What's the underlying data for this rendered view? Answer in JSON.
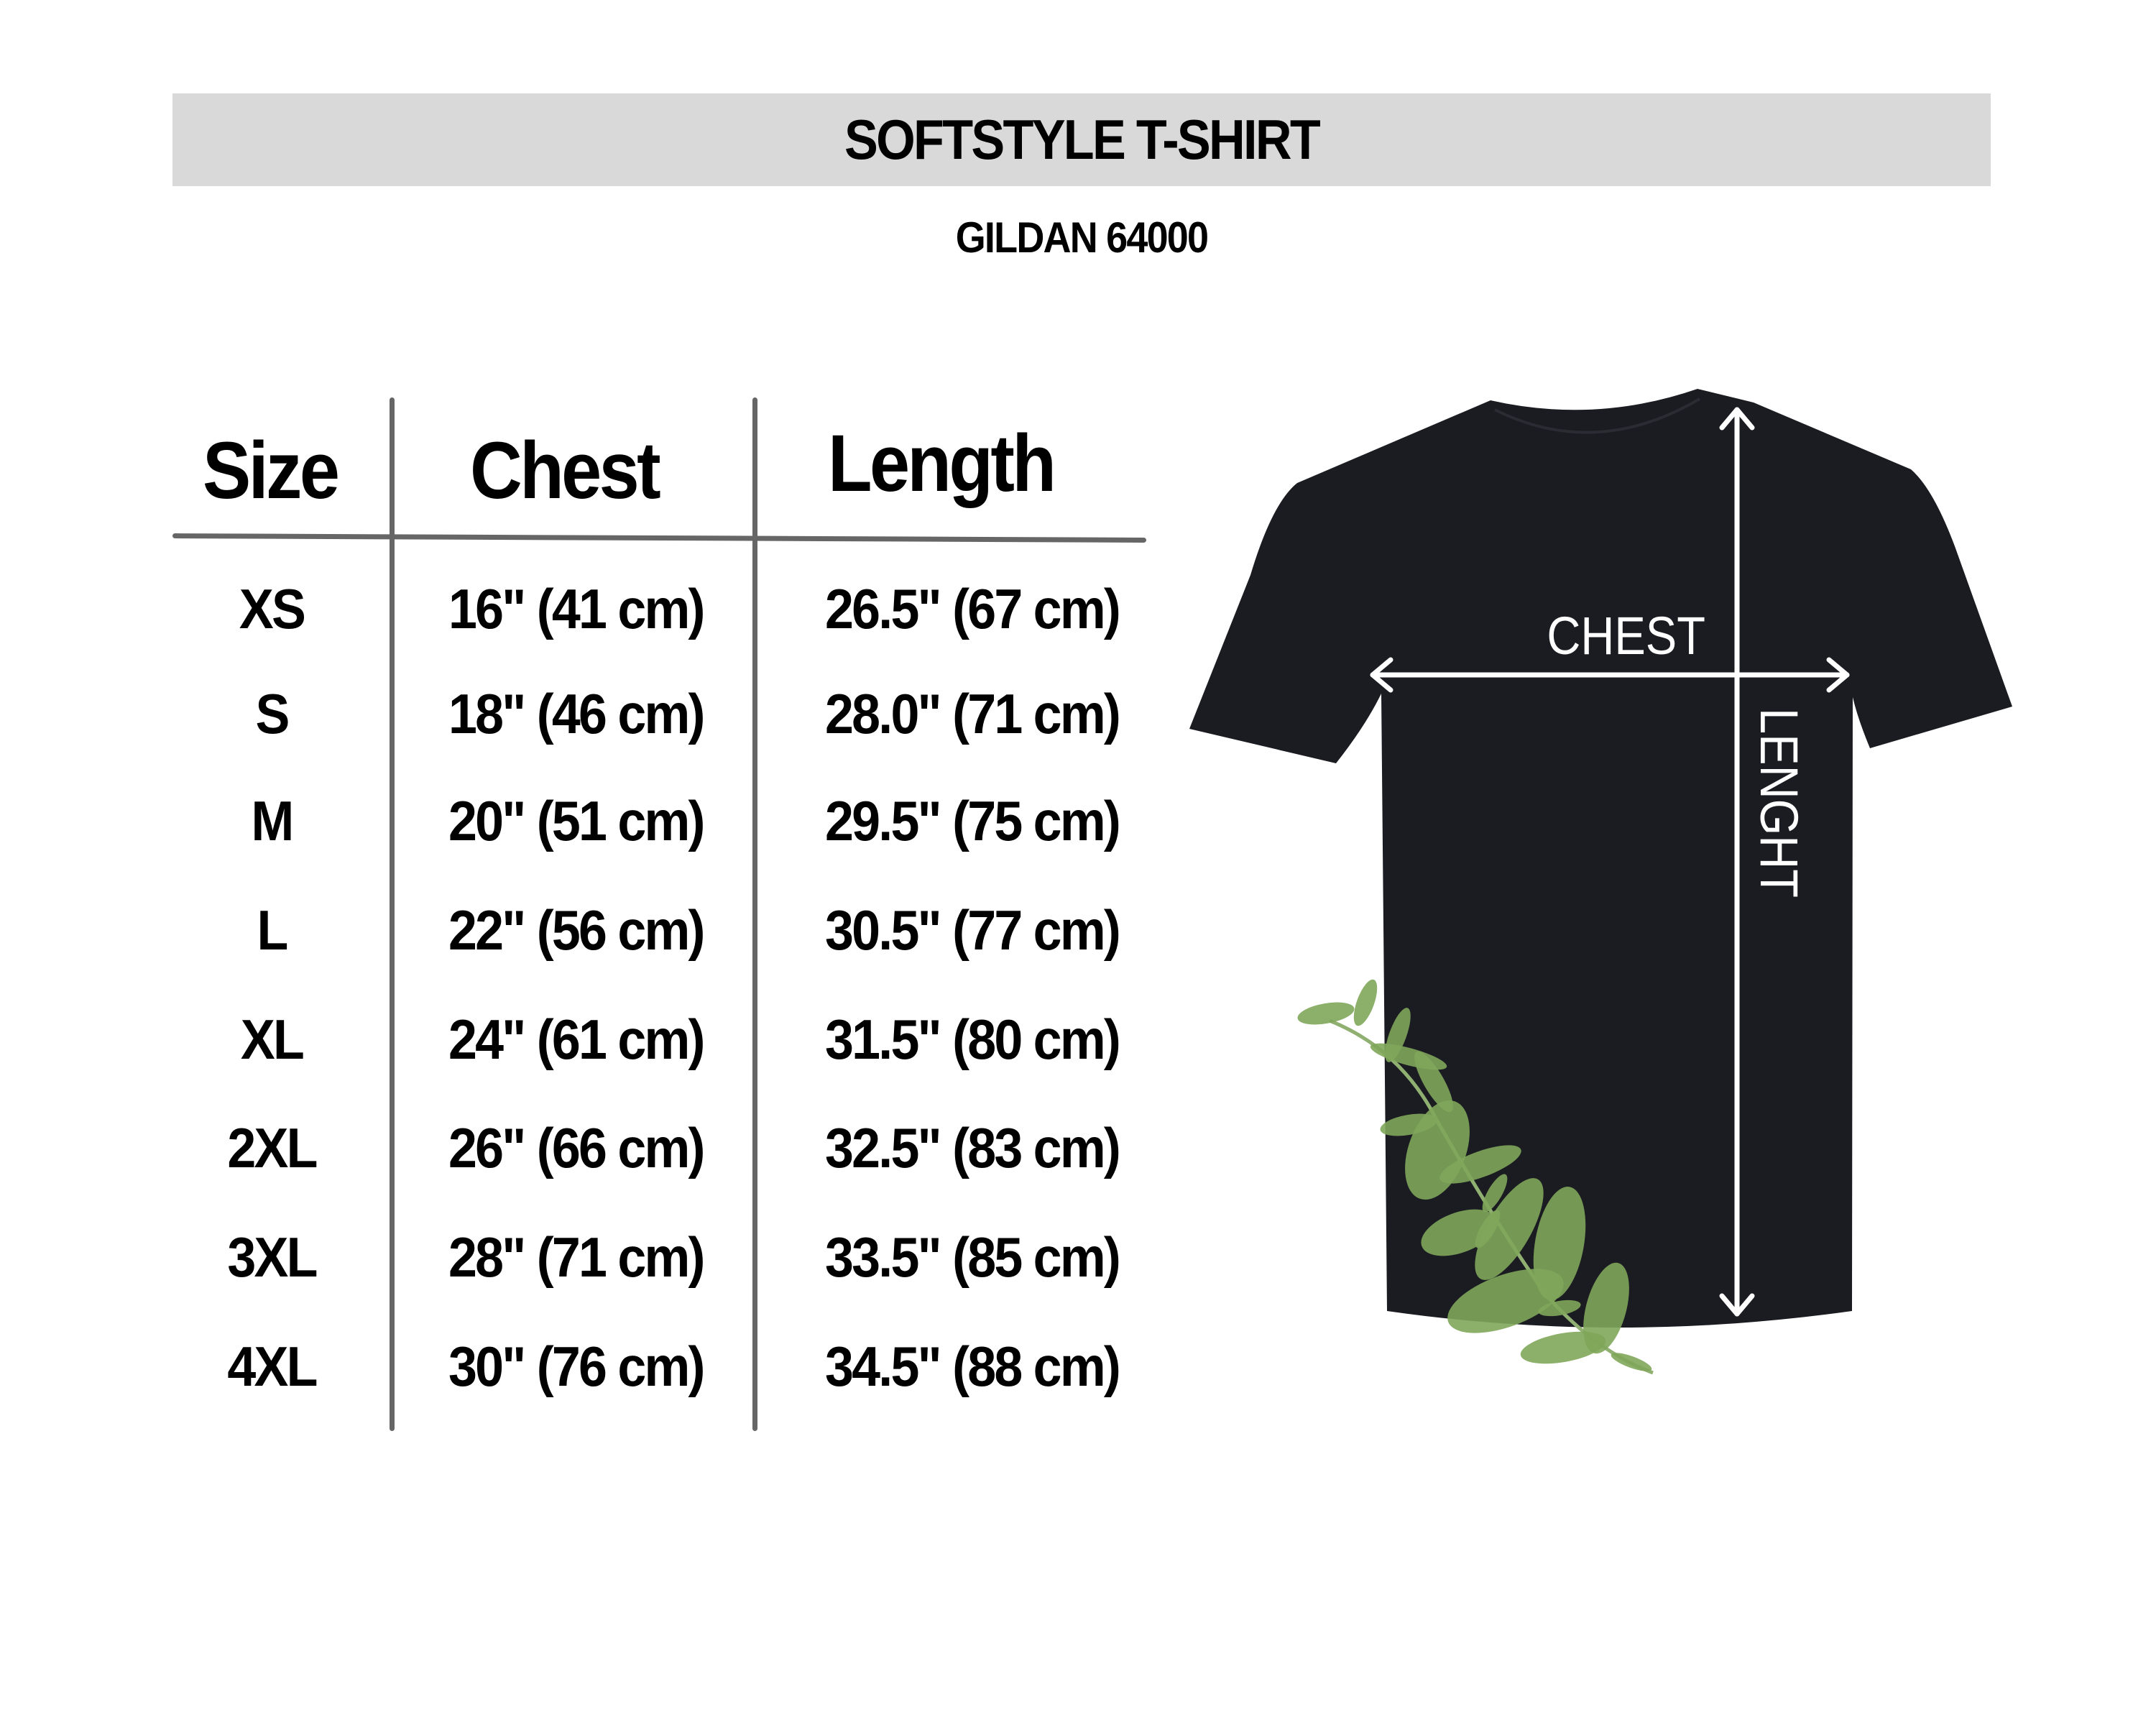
{
  "header": {
    "title": "SOFTSTYLE T-SHIRT",
    "subtitle": "GILDAN 64000"
  },
  "table": {
    "columns": [
      "Size",
      "Chest",
      "Length"
    ],
    "rows": [
      {
        "size": "XS",
        "chest": "16\" (41 cm)",
        "length": "26.5\" (67 cm)"
      },
      {
        "size": "S",
        "chest": "18\" (46 cm)",
        "length": "28.0\" (71 cm)"
      },
      {
        "size": "M",
        "chest": "20\" (51 cm)",
        "length": "29.5\" (75 cm)"
      },
      {
        "size": "L",
        "chest": "22\" (56 cm)",
        "length": "30.5\" (77 cm)"
      },
      {
        "size": "XL",
        "chest": "24\" (61 cm)",
        "length": "31.5\" (80 cm)"
      },
      {
        "size": "2XL",
        "chest": "26\" (66 cm)",
        "length": "32.5\" (83 cm)"
      },
      {
        "size": "3XL",
        "chest": "28\" (71 cm)",
        "length": "33.5\" (85 cm)"
      },
      {
        "size": "4XL",
        "chest": "30\" (76 cm)",
        "length": "34.5\" (88 cm)"
      }
    ]
  },
  "diagram": {
    "chest_label": "CHEST",
    "length_label": "LENGHT",
    "shirt_color": "#1b1c22",
    "leaf_color": "#7fa65a"
  },
  "colors": {
    "title_bar": "#d9d9d9",
    "grid_lines": "#666666"
  }
}
